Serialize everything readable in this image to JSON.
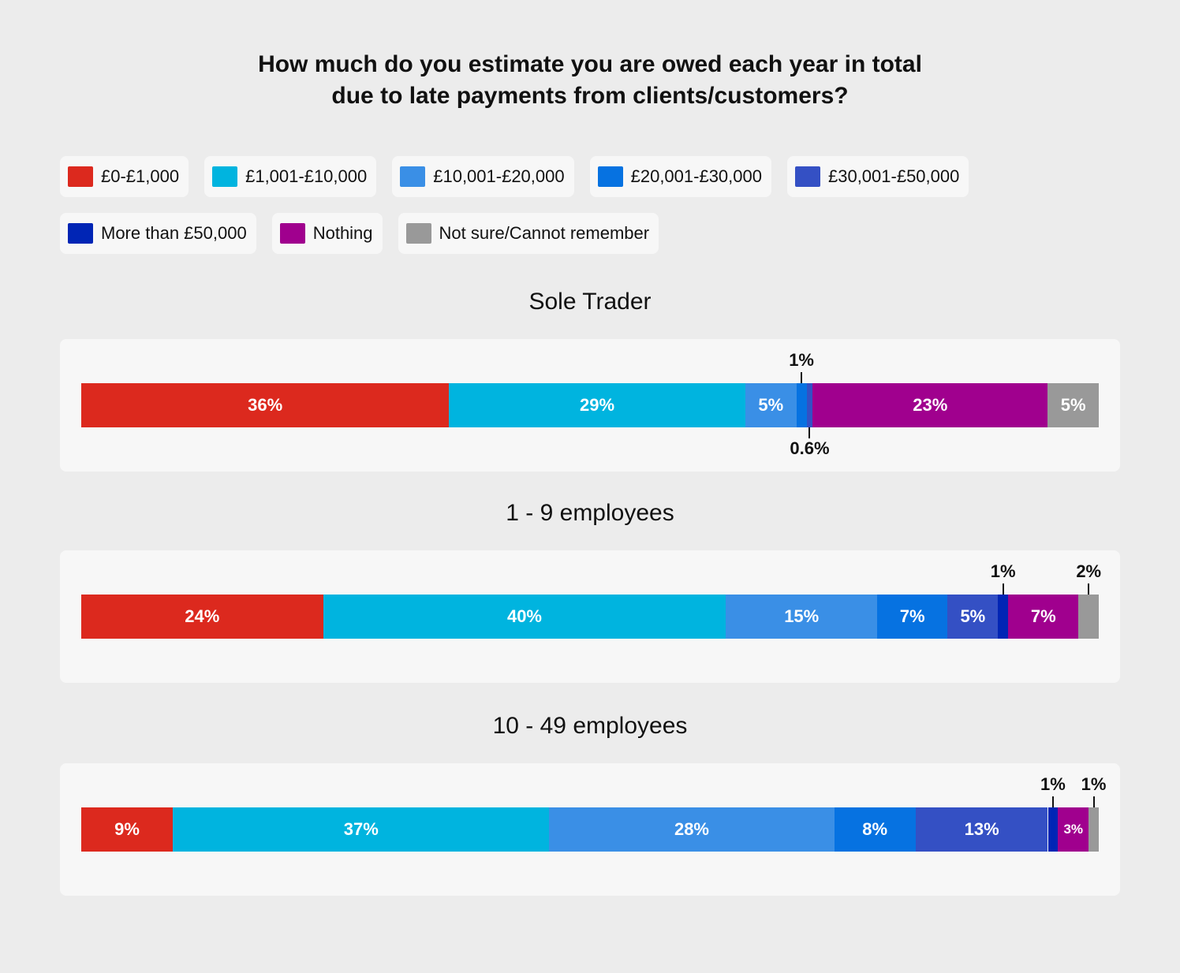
{
  "chart_data": {
    "type": "bar",
    "orientation": "horizontal-stacked",
    "title": "How much do you estimate you are owed each year in total due to late payments from clients/customers?",
    "unit": "%",
    "legend_position": "top",
    "categories": [
      {
        "name": "£0-£1,000",
        "color": "#dc291e"
      },
      {
        "name": "£1,001-£10,000",
        "color": "#00b4df"
      },
      {
        "name": "£10,001-£20,000",
        "color": "#3a8fe6"
      },
      {
        "name": "£20,001-£30,000",
        "color": "#0672e1"
      },
      {
        "name": "£30,001-£50,000",
        "color": "#3450c4"
      },
      {
        "name": "More than £50,000",
        "color": "#0025b5"
      },
      {
        "name": "Nothing",
        "color": "#a0008e"
      },
      {
        "name": "Not sure/Cannot remember",
        "color": "#999999"
      }
    ],
    "groups": [
      {
        "name": "Sole Trader",
        "values": [
          36,
          29,
          5,
          1,
          0.6,
          null,
          23,
          5
        ],
        "labels": [
          "36%",
          "29%",
          "5%",
          "1%",
          "0.6%",
          null,
          "23%",
          "5%"
        ],
        "callouts": [
          null,
          null,
          null,
          "above",
          "below",
          null,
          null,
          null
        ]
      },
      {
        "name": "1 - 9 employees",
        "values": [
          24,
          40,
          15,
          7,
          5,
          1,
          7,
          2
        ],
        "labels": [
          "24%",
          "40%",
          "15%",
          "7%",
          "5%",
          "1%",
          "7%",
          "2%"
        ],
        "callouts": [
          null,
          null,
          null,
          null,
          null,
          "above",
          null,
          "above"
        ]
      },
      {
        "name": "10 - 49 employees",
        "values": [
          9,
          37,
          28,
          8,
          13,
          1,
          3,
          1
        ],
        "labels": [
          "9%",
          "37%",
          "28%",
          "8%",
          "13%",
          "1%",
          "3%",
          "1%"
        ],
        "callouts": [
          null,
          null,
          null,
          null,
          null,
          "above",
          null,
          "above"
        ]
      }
    ]
  }
}
